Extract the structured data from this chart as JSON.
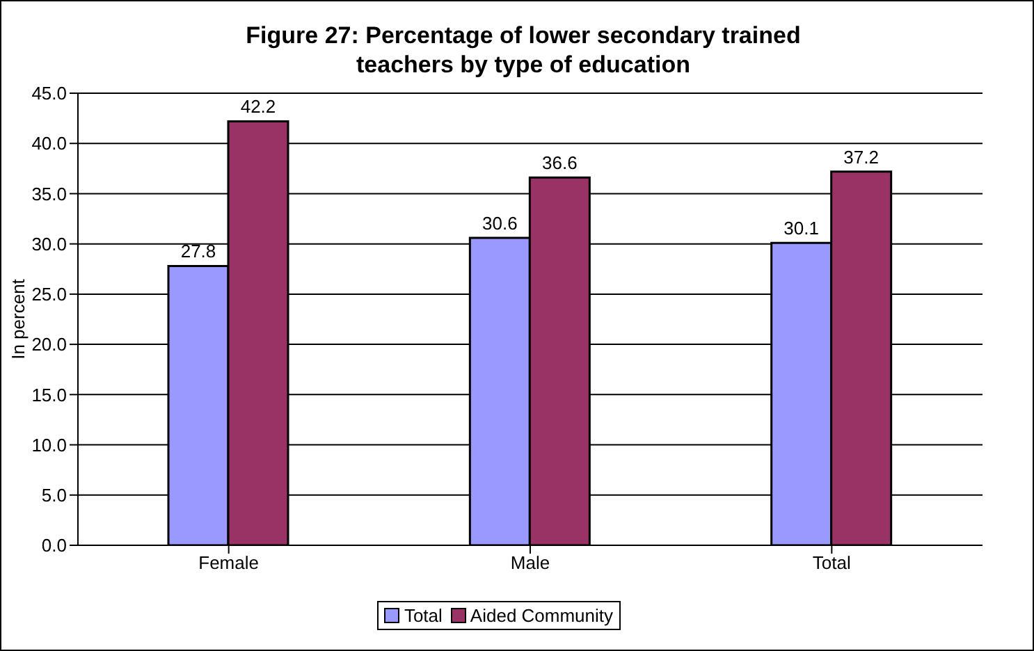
{
  "chart_data": {
    "type": "bar",
    "title": "Figure 27: Percentage of lower secondary trained teachers by type of education",
    "ylabel": "In percent",
    "categories": [
      "Female",
      "Male",
      "Total"
    ],
    "series": [
      {
        "name": "Total",
        "color": "#9999ff",
        "values": [
          27.8,
          30.6,
          30.1
        ]
      },
      {
        "name": "Aided Community",
        "color": "#993366",
        "values": [
          42.2,
          36.6,
          37.2
        ]
      }
    ],
    "ylim": [
      0,
      45
    ],
    "yticks": [
      {
        "value": 0,
        "label": "0.0"
      },
      {
        "value": 5,
        "label": "5.0"
      },
      {
        "value": 10,
        "label": "10.0"
      },
      {
        "value": 15,
        "label": "15.0"
      },
      {
        "value": 20,
        "label": "20.0"
      },
      {
        "value": 25,
        "label": "25.0"
      },
      {
        "value": 30,
        "label": "30.0"
      },
      {
        "value": 35,
        "label": "35.0"
      },
      {
        "value": 40,
        "label": "40.0"
      },
      {
        "value": 45,
        "label": "45.0"
      }
    ],
    "grid": "y",
    "legend": "bottom",
    "data_labels": true
  }
}
